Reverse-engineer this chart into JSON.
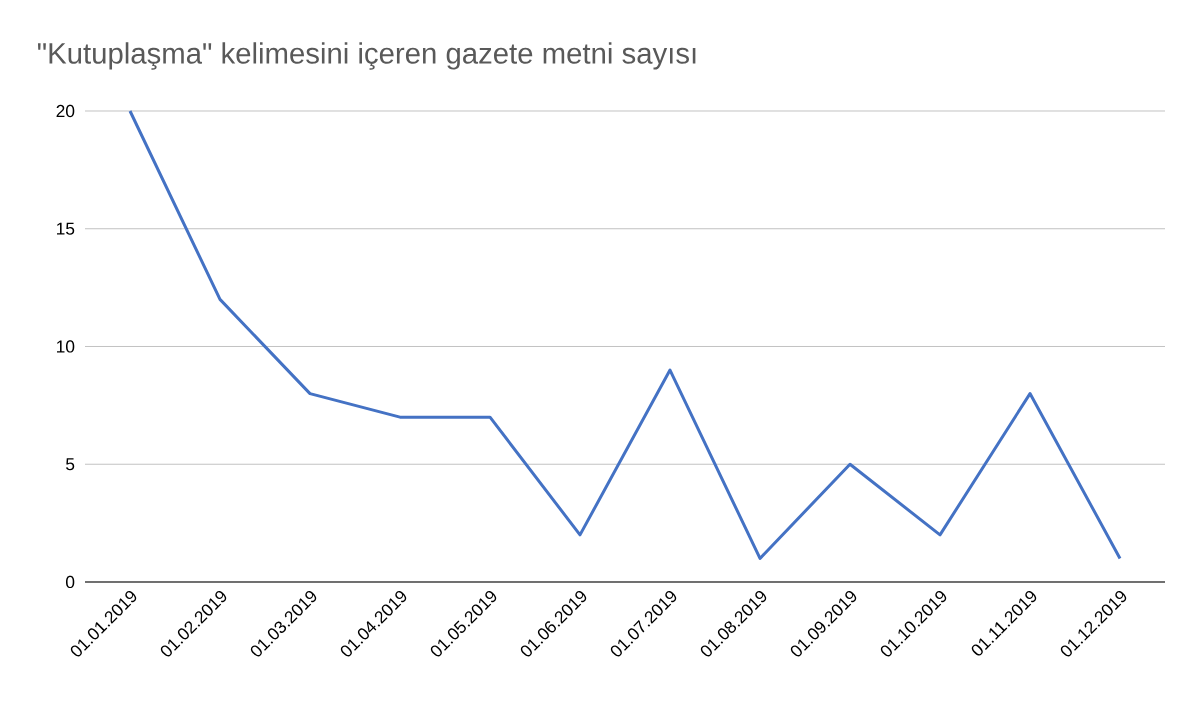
{
  "chart_data": {
    "type": "line",
    "title": "\"Kutuplaşma\" kelimesini içeren gazete metni sayısı",
    "categories": [
      "01.01.2019",
      "01.02.2019",
      "01.03.2019",
      "01.04.2019",
      "01.05.2019",
      "01.06.2019",
      "01.07.2019",
      "01.08.2019",
      "01.09.2019",
      "01.10.2019",
      "01.11.2019",
      "01.12.2019"
    ],
    "values": [
      20,
      12,
      8,
      7,
      7,
      2,
      9,
      1,
      5,
      2,
      8,
      1
    ],
    "color": "#4472c4",
    "ylim": [
      0,
      20
    ],
    "yticks": [
      0,
      5,
      10,
      15,
      20
    ],
    "grid": "y"
  }
}
